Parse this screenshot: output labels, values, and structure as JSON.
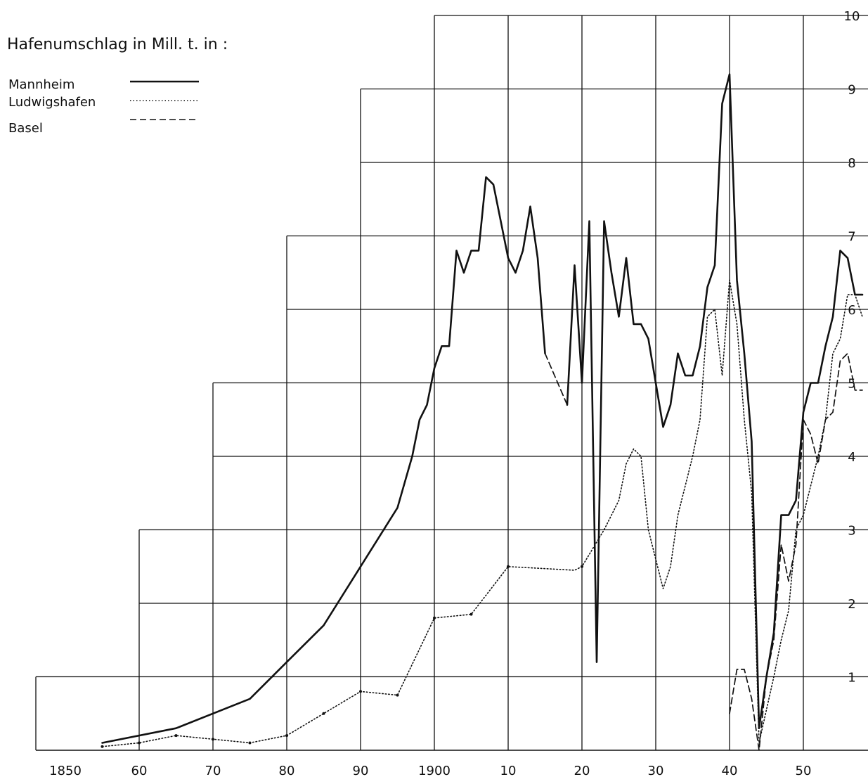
{
  "chart_data": {
    "type": "line",
    "title": "Hafenumschlag in Mill. t. in :",
    "xlabel": "",
    "ylabel": "",
    "xlim": [
      1846,
      1960
    ],
    "ylim": [
      0,
      10
    ],
    "x_tick_labels": [
      {
        "x": 1850,
        "label": "1850"
      },
      {
        "x": 1860,
        "label": "60"
      },
      {
        "x": 1870,
        "label": "70"
      },
      {
        "x": 1880,
        "label": "80"
      },
      {
        "x": 1890,
        "label": "90"
      },
      {
        "x": 1900,
        "label": "1900"
      },
      {
        "x": 1910,
        "label": "10"
      },
      {
        "x": 1920,
        "label": "20"
      },
      {
        "x": 1930,
        "label": "30"
      },
      {
        "x": 1940,
        "label": "40"
      },
      {
        "x": 1950,
        "label": "50"
      },
      {
        "x": 1960,
        "label": "60"
      }
    ],
    "y_tick_labels": [
      {
        "y": 1,
        "label": "1"
      },
      {
        "y": 2,
        "label": "2"
      },
      {
        "y": 3,
        "label": "3"
      },
      {
        "y": 4,
        "label": "4"
      },
      {
        "y": 5,
        "label": "5"
      },
      {
        "y": 6,
        "label": "6"
      },
      {
        "y": 7,
        "label": "7"
      },
      {
        "y": 8,
        "label": "8"
      },
      {
        "y": 9,
        "label": "9"
      },
      {
        "y": 10,
        "label": "10"
      }
    ],
    "grid_steps": [
      {
        "x_start": 1846,
        "y_top": 1
      },
      {
        "x_start": 1860,
        "y_top": 3
      },
      {
        "x_start": 1870,
        "y_top": 5
      },
      {
        "x_start": 1880,
        "y_top": 7
      },
      {
        "x_start": 1890,
        "y_top": 9
      },
      {
        "x_start": 1900,
        "y_top": 10
      }
    ],
    "legend": {
      "position": "top-left",
      "entries": [
        {
          "name": "Mannheim",
          "style": "solid"
        },
        {
          "name": "Ludwigshafen",
          "style": "dotted"
        },
        {
          "name": "Basel",
          "style": "dashed"
        }
      ]
    },
    "series": [
      {
        "name": "Mannheim",
        "style": "solid",
        "segments": [
          [
            [
              1855,
              0.1
            ],
            [
              1865,
              0.3
            ],
            [
              1875,
              0.7
            ],
            [
              1880,
              1.2
            ],
            [
              1885,
              1.7
            ],
            [
              1890,
              2.5
            ],
            [
              1895,
              3.3
            ],
            [
              1897,
              4.0
            ],
            [
              1898,
              4.5
            ],
            [
              1899,
              4.7
            ],
            [
              1900,
              5.2
            ],
            [
              1901,
              5.5
            ],
            [
              1902,
              5.5
            ],
            [
              1903,
              6.8
            ],
            [
              1904,
              6.5
            ],
            [
              1905,
              6.8
            ],
            [
              1906,
              6.8
            ],
            [
              1907,
              7.8
            ],
            [
              1908,
              7.7
            ],
            [
              1909,
              7.2
            ],
            [
              1910,
              6.7
            ],
            [
              1911,
              6.5
            ],
            [
              1912,
              6.8
            ],
            [
              1913,
              7.4
            ],
            [
              1914,
              6.7
            ],
            [
              1915,
              5.4
            ]
          ],
          [
            [
              1918,
              4.7
            ],
            [
              1919,
              6.6
            ],
            [
              1920,
              5.0
            ],
            [
              1921,
              7.2
            ],
            [
              1922,
              1.2
            ],
            [
              1923,
              7.2
            ],
            [
              1924,
              6.5
            ],
            [
              1925,
              5.9
            ],
            [
              1926,
              6.7
            ],
            [
              1927,
              5.8
            ],
            [
              1928,
              5.8
            ],
            [
              1929,
              5.6
            ],
            [
              1930,
              5.0
            ],
            [
              1931,
              4.4
            ],
            [
              1932,
              4.7
            ],
            [
              1933,
              5.4
            ],
            [
              1934,
              5.1
            ],
            [
              1935,
              5.1
            ],
            [
              1936,
              5.5
            ],
            [
              1937,
              6.3
            ],
            [
              1938,
              6.6
            ],
            [
              1939,
              8.8
            ],
            [
              1940,
              9.2
            ],
            [
              1941,
              6.4
            ],
            [
              1942,
              5.4
            ],
            [
              1943,
              4.2
            ],
            [
              1944,
              0.3
            ],
            [
              1945,
              1.0
            ],
            [
              1946,
              1.6
            ],
            [
              1947,
              3.2
            ],
            [
              1948,
              3.2
            ],
            [
              1949,
              3.4
            ],
            [
              1950,
              4.6
            ],
            [
              1951,
              5.0
            ],
            [
              1952,
              5.0
            ],
            [
              1953,
              5.5
            ],
            [
              1954,
              5.9
            ],
            [
              1955,
              6.8
            ],
            [
              1956,
              6.7
            ],
            [
              1957,
              6.2
            ],
            [
              1958,
              6.2
            ]
          ]
        ]
      },
      {
        "name": "Ludwigshafen",
        "style": "dotted",
        "segments": [
          [
            [
              1855,
              0.05
            ],
            [
              1860,
              0.1
            ],
            [
              1865,
              0.2
            ],
            [
              1870,
              0.15
            ],
            [
              1875,
              0.1
            ],
            [
              1880,
              0.2
            ],
            [
              1885,
              0.5
            ],
            [
              1890,
              0.8
            ],
            [
              1895,
              0.75
            ],
            [
              1900,
              1.8
            ],
            [
              1905,
              1.85
            ],
            [
              1910,
              2.5
            ],
            [
              1919,
              2.45
            ],
            [
              1920,
              2.5
            ],
            [
              1923,
              3.0
            ],
            [
              1925,
              3.4
            ],
            [
              1926,
              3.9
            ],
            [
              1927,
              4.1
            ],
            [
              1928,
              4.0
            ],
            [
              1929,
              3.0
            ],
            [
              1931,
              2.2
            ],
            [
              1932,
              2.5
            ],
            [
              1933,
              3.2
            ],
            [
              1935,
              4.0
            ],
            [
              1936,
              4.5
            ],
            [
              1937,
              5.9
            ],
            [
              1938,
              6.0
            ],
            [
              1939,
              5.1
            ],
            [
              1940,
              6.4
            ],
            [
              1941,
              5.8
            ],
            [
              1942,
              4.5
            ],
            [
              1943,
              3.5
            ],
            [
              1944,
              0.1
            ],
            [
              1946,
              1.0
            ],
            [
              1947,
              1.5
            ],
            [
              1948,
              1.9
            ],
            [
              1949,
              3.0
            ],
            [
              1950,
              3.2
            ],
            [
              1951,
              3.6
            ],
            [
              1952,
              4.0
            ],
            [
              1953,
              4.5
            ],
            [
              1954,
              5.4
            ],
            [
              1955,
              5.6
            ],
            [
              1956,
              6.2
            ],
            [
              1957,
              6.2
            ],
            [
              1958,
              5.9
            ]
          ]
        ]
      },
      {
        "name": "Basel",
        "style": "dashed",
        "segments": [
          [
            [
              1915,
              5.4
            ],
            [
              1918,
              4.7
            ]
          ],
          [
            [
              1940,
              0.5
            ],
            [
              1941,
              1.1
            ],
            [
              1942,
              1.1
            ],
            [
              1943,
              0.7
            ],
            [
              1944,
              0.0
            ],
            [
              1945,
              1.0
            ],
            [
              1946,
              1.5
            ],
            [
              1947,
              2.8
            ],
            [
              1948,
              2.3
            ],
            [
              1949,
              2.8
            ],
            [
              1950,
              4.5
            ],
            [
              1951,
              4.3
            ],
            [
              1952,
              3.9
            ],
            [
              1953,
              4.5
            ],
            [
              1954,
              4.6
            ],
            [
              1955,
              5.3
            ],
            [
              1956,
              5.4
            ],
            [
              1957,
              4.9
            ],
            [
              1958,
              4.9
            ]
          ]
        ]
      }
    ]
  }
}
